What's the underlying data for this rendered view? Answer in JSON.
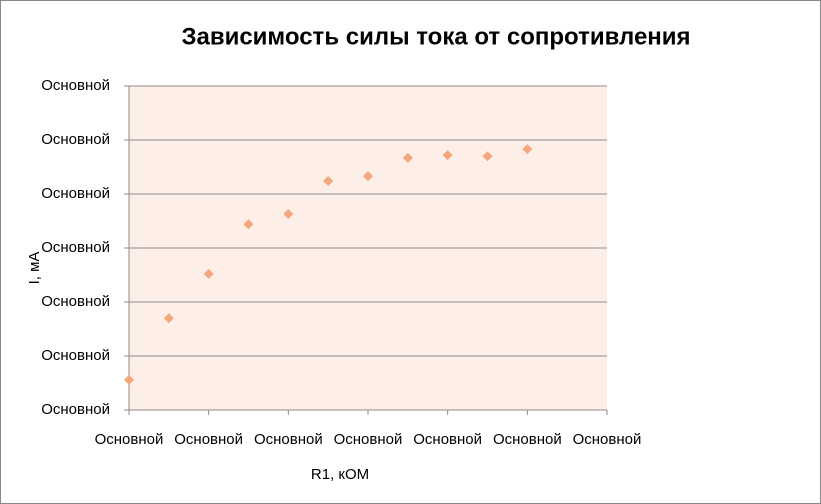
{
  "chart_data": {
    "type": "scatter",
    "title": "Зависимость силы тока от сопротивления",
    "x_label": "R1, кОМ",
    "y_label": "I, мА",
    "x": [
      0,
      0.5,
      1,
      1.5,
      2,
      2.5,
      3,
      3.5,
      4,
      4.5,
      5
    ],
    "values": [
      0.56,
      1.7,
      2.52,
      3.44,
      3.63,
      4.24,
      4.33,
      4.67,
      4.72,
      4.7,
      4.83
    ],
    "color": "#f4a77c",
    "xlim": [
      0,
      6
    ],
    "ylim": [
      0,
      6
    ],
    "xticks": [
      {
        "value": 0,
        "label": "Основной"
      },
      {
        "value": 1,
        "label": "Основной"
      },
      {
        "value": 2,
        "label": "Основной"
      },
      {
        "value": 3,
        "label": "Основной"
      },
      {
        "value": 4,
        "label": "Основной"
      },
      {
        "value": 5,
        "label": "Основной"
      },
      {
        "value": 6,
        "label": "Основной"
      }
    ],
    "yticks": [
      {
        "value": 0,
        "label": "Основной"
      },
      {
        "value": 1,
        "label": "Основной"
      },
      {
        "value": 2,
        "label": "Основной"
      },
      {
        "value": 3,
        "label": "Основной"
      },
      {
        "value": 4,
        "label": "Основной"
      },
      {
        "value": 5,
        "label": "Основной"
      },
      {
        "value": 6,
        "label": "Основной"
      }
    ],
    "grid": true
  }
}
